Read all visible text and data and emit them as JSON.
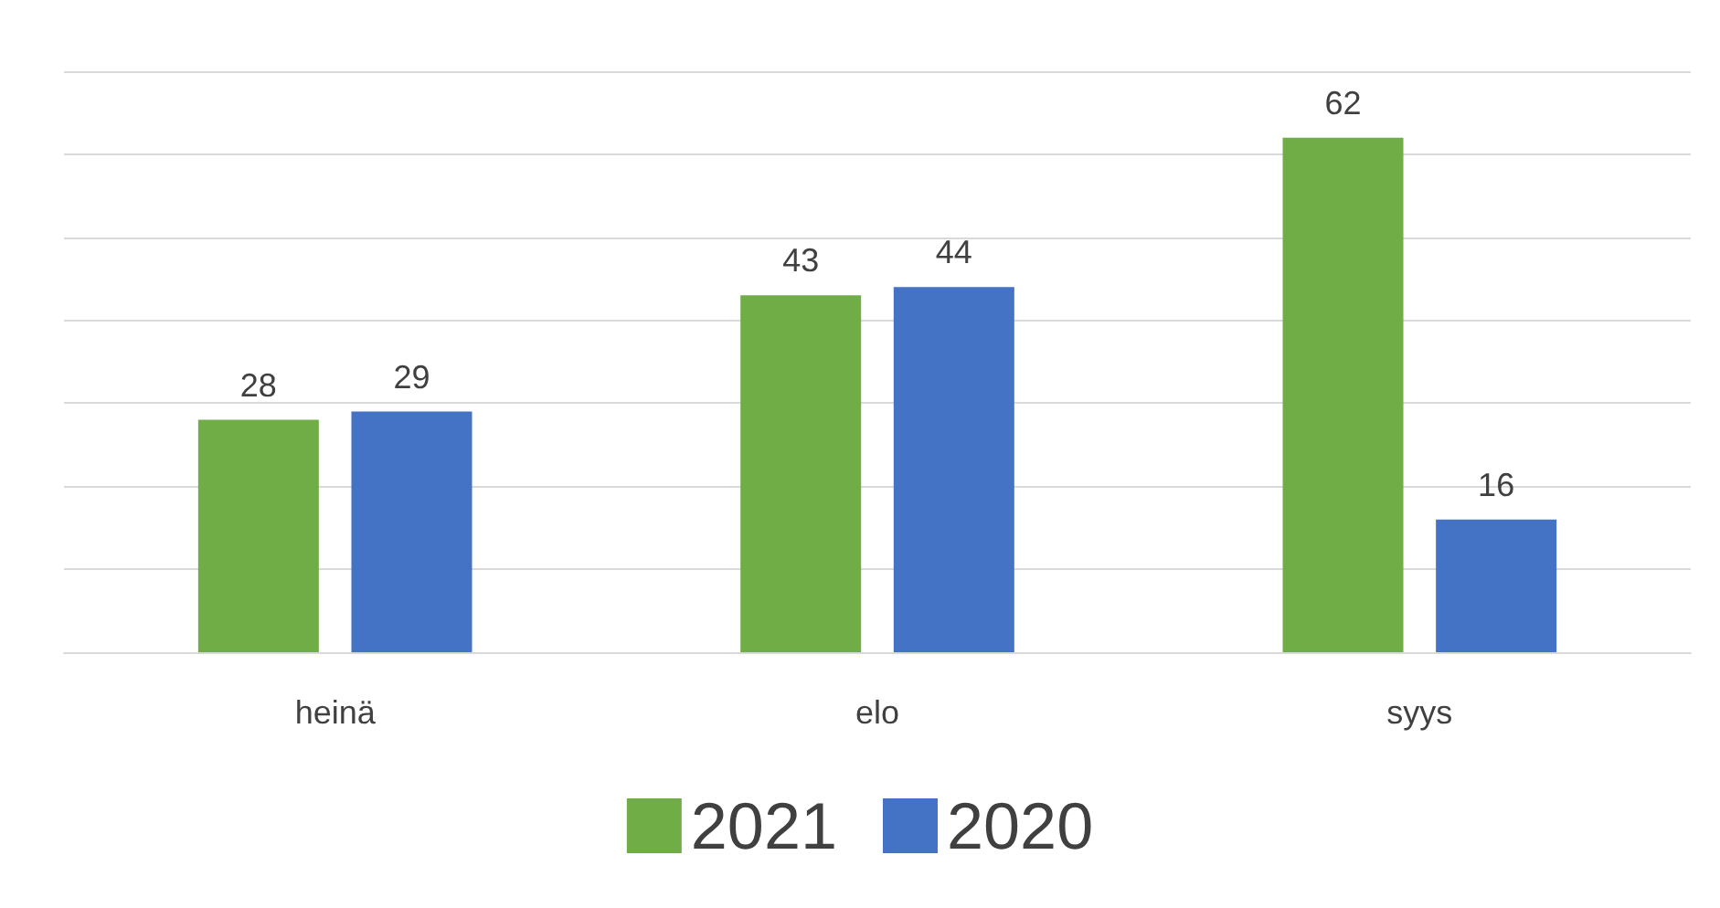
{
  "chart_data": {
    "type": "bar",
    "categories": [
      "heinä",
      "elo",
      "syys"
    ],
    "series": [
      {
        "name": "2021",
        "color": "#70ad47",
        "values": [
          28,
          43,
          62
        ]
      },
      {
        "name": "2020",
        "color": "#4472c4",
        "values": [
          29,
          44,
          16
        ]
      }
    ],
    "ylim": [
      0,
      70
    ],
    "yticks": [
      {
        "value": 0,
        "label": null
      },
      {
        "value": 10,
        "label": null
      },
      {
        "value": 20,
        "label": null
      },
      {
        "value": 30,
        "label": null
      },
      {
        "value": 40,
        "label": null
      },
      {
        "value": 50,
        "label": null
      },
      {
        "value": 60,
        "label": null
      },
      {
        "value": 70,
        "label": null
      }
    ],
    "tick_labels": "x",
    "grid": "y",
    "data_labels": true,
    "legend": "bottom"
  }
}
